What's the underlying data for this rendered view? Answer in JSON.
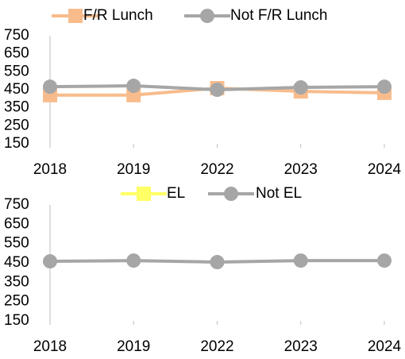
{
  "chart_data": [
    {
      "type": "line",
      "categories": [
        "2018",
        "2019",
        "2022",
        "2023",
        "2024"
      ],
      "series": [
        {
          "name": "F/R Lunch",
          "color": "#f8bc8c",
          "marker": "square",
          "values": [
            420,
            420,
            459,
            441,
            433
          ]
        },
        {
          "name": "Not F/R Lunch",
          "color": "#a6a6a6",
          "marker": "circle",
          "values": [
            467,
            472,
            450,
            463,
            467
          ]
        }
      ],
      "ylim": [
        150,
        750
      ],
      "yticks": [
        150,
        250,
        350,
        450,
        550,
        650,
        750
      ],
      "legend": "top"
    },
    {
      "type": "line",
      "categories": [
        "2018",
        "2019",
        "2022",
        "2023",
        "2024"
      ],
      "series": [
        {
          "name": "EL",
          "color": "#ffff66",
          "marker": "square",
          "values": [
            null,
            null,
            null,
            null,
            null
          ]
        },
        {
          "name": "Not EL",
          "color": "#a6a6a6",
          "marker": "circle",
          "values": [
            458,
            462,
            454,
            462,
            462
          ]
        }
      ],
      "ylim": [
        150,
        750
      ],
      "yticks": [
        150,
        250,
        350,
        450,
        550,
        650,
        750
      ],
      "legend": "top"
    }
  ]
}
